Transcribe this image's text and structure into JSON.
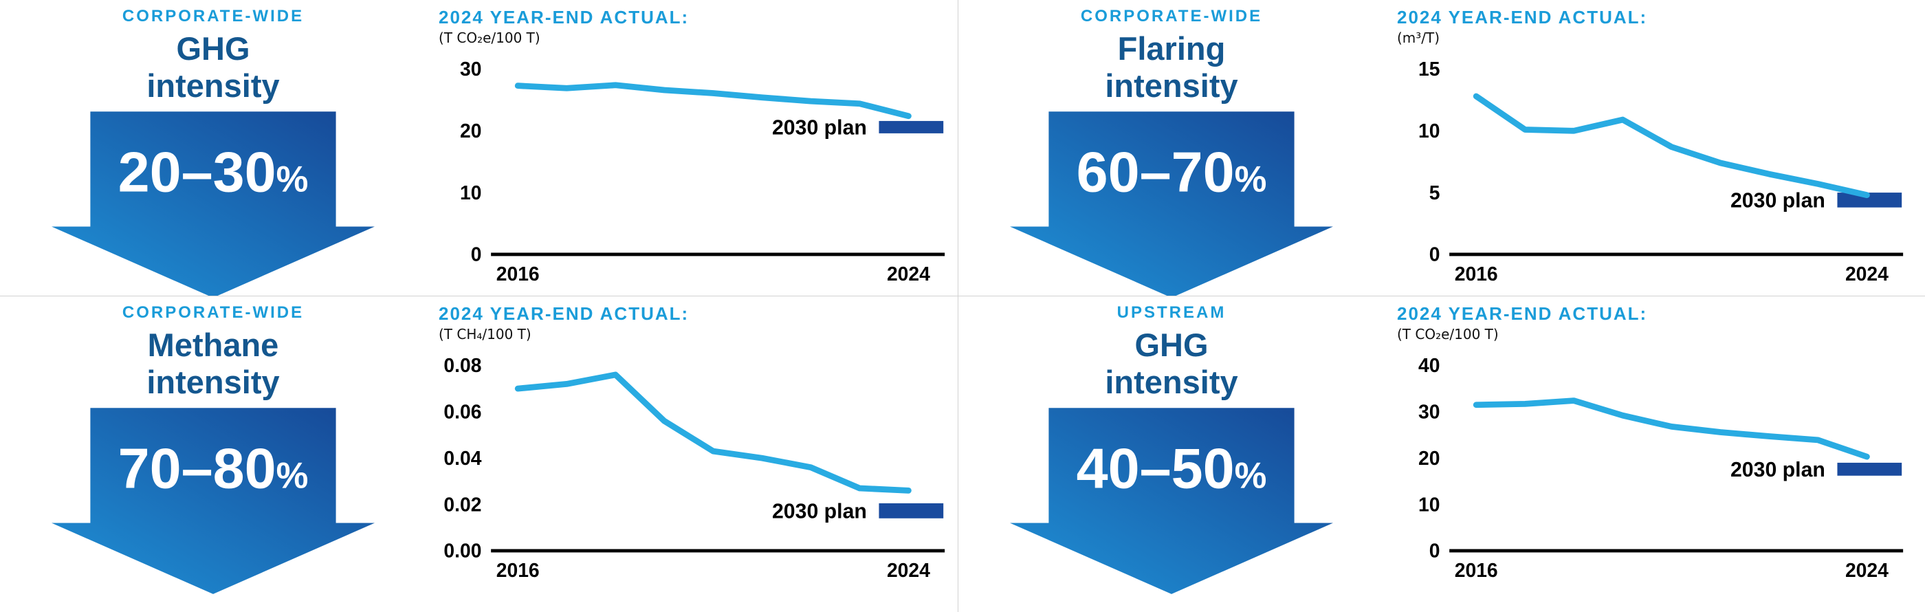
{
  "colors": {
    "accent_light_blue": "#1a9cd9",
    "title_dark_blue": "#14578f",
    "line": "#29abe2",
    "plan_bar": "#1a4b9e",
    "arrow_gradient_from": "#1f93d8",
    "arrow_gradient_to": "#164695",
    "divider_gray": "#d2d2d2",
    "axis_black": "#000000"
  },
  "panels": [
    {
      "category": "CORPORATE-WIDE",
      "title": "GHG\nintensity",
      "reduction": {
        "range": "20–30",
        "sign": "%"
      },
      "chart_header": "2024 YEAR-END ACTUAL:",
      "chart_unit": "(T CO₂e/100 T)"
    },
    {
      "category": "CORPORATE-WIDE",
      "title": "Flaring\nintensity",
      "reduction": {
        "range": "60–70",
        "sign": "%"
      },
      "chart_header": "2024 YEAR-END ACTUAL:",
      "chart_unit": "(m³/T)"
    },
    {
      "category": "CORPORATE-WIDE",
      "title": "Methane\nintensity",
      "reduction": {
        "range": "70–80",
        "sign": "%"
      },
      "chart_header": "2024 YEAR-END ACTUAL:",
      "chart_unit": "(T CH₄/100 T)"
    },
    {
      "category": "UPSTREAM",
      "title": "GHG\nintensity",
      "reduction": {
        "range": "40–50",
        "sign": "%"
      },
      "chart_header": "2024 YEAR-END ACTUAL:",
      "chart_unit": "(T CO₂e/100 T)"
    }
  ],
  "chart_data": [
    {
      "type": "line",
      "title": "2024 YEAR-END ACTUAL:",
      "ylabel": "(T CO₂e/100 T)",
      "x": [
        2016,
        2017,
        2018,
        2019,
        2020,
        2021,
        2022,
        2023,
        2024
      ],
      "values": [
        27.3,
        26.9,
        27.4,
        26.6,
        26.1,
        25.4,
        24.8,
        24.4,
        22.4
      ],
      "ylim": [
        0,
        30
      ],
      "yticks": [
        {
          "v": 0,
          "t": "0"
        },
        {
          "v": 10,
          "t": "10"
        },
        {
          "v": 20,
          "t": "20"
        },
        {
          "v": 30,
          "t": "30"
        }
      ],
      "xtick_labels": [
        "2016",
        "2024"
      ],
      "grid": false,
      "annotation": {
        "label": "2030 plan",
        "range": [
          19.6,
          21.6
        ]
      }
    },
    {
      "type": "line",
      "title": "2024 YEAR-END ACTUAL:",
      "ylabel": "(m³/T)",
      "x": [
        2016,
        2017,
        2018,
        2019,
        2020,
        2021,
        2022,
        2023,
        2024
      ],
      "values": [
        12.8,
        10.1,
        10.0,
        10.9,
        8.7,
        7.4,
        6.5,
        5.7,
        4.8
      ],
      "ylim": [
        0,
        15
      ],
      "yticks": [
        {
          "v": 0,
          "t": "0"
        },
        {
          "v": 5,
          "t": "5"
        },
        {
          "v": 10,
          "t": "10"
        },
        {
          "v": 15,
          "t": "15"
        }
      ],
      "xtick_labels": [
        "2016",
        "2024"
      ],
      "grid": false,
      "annotation": {
        "label": "2030 plan",
        "range": [
          3.8,
          5.0
        ]
      }
    },
    {
      "type": "line",
      "title": "2024 YEAR-END ACTUAL:",
      "ylabel": "(T CH₄/100 T)",
      "x": [
        2016,
        2017,
        2018,
        2019,
        2020,
        2021,
        2022,
        2023,
        2024
      ],
      "values": [
        0.07,
        0.072,
        0.076,
        0.056,
        0.043,
        0.04,
        0.036,
        0.027,
        0.026
      ],
      "ylim": [
        0,
        0.08
      ],
      "yticks": [
        {
          "v": 0,
          "t": "0.00"
        },
        {
          "v": 0.02,
          "t": "0.02"
        },
        {
          "v": 0.04,
          "t": "0.04"
        },
        {
          "v": 0.06,
          "t": "0.06"
        },
        {
          "v": 0.08,
          "t": "0.08"
        }
      ],
      "xtick_labels": [
        "2016",
        "2024"
      ],
      "grid": false,
      "annotation": {
        "label": "2030 plan",
        "range": [
          0.014,
          0.0205
        ]
      }
    },
    {
      "type": "line",
      "title": "2024 YEAR-END ACTUAL:",
      "ylabel": "(T CO₂e/100 T)",
      "x": [
        2016,
        2017,
        2018,
        2019,
        2020,
        2021,
        2022,
        2023,
        2024
      ],
      "values": [
        31.5,
        31.7,
        32.4,
        29.2,
        26.8,
        25.6,
        24.7,
        23.9,
        20.3
      ],
      "ylim": [
        0,
        40
      ],
      "yticks": [
        {
          "v": 0,
          "t": "0"
        },
        {
          "v": 10,
          "t": "10"
        },
        {
          "v": 20,
          "t": "20"
        },
        {
          "v": 30,
          "t": "30"
        },
        {
          "v": 40,
          "t": "40"
        }
      ],
      "xtick_labels": [
        "2016",
        "2024"
      ],
      "grid": false,
      "annotation": {
        "label": "2030 plan",
        "range": [
          16.2,
          19.0
        ]
      }
    }
  ]
}
